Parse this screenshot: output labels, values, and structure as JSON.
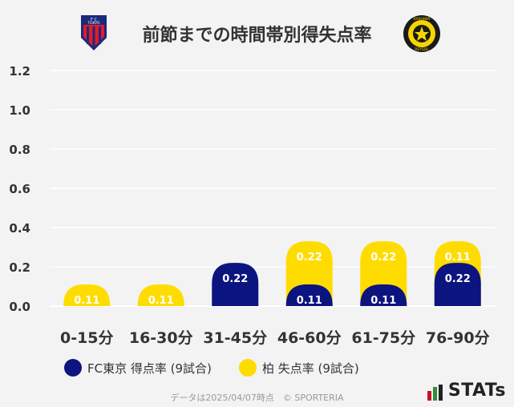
{
  "title": "前節までの時間帯別得失点率",
  "logos": {
    "left": {
      "text": "FC TOKYO",
      "color": "#e21a2c",
      "stripe": "#1b2a7a"
    },
    "right": {
      "text": "KASHIWA REYSOL",
      "color": "#f5d500"
    }
  },
  "chart_data": {
    "type": "bar",
    "categories": [
      "0-15分",
      "16-30分",
      "31-45分",
      "46-60分",
      "61-75分",
      "76-90分"
    ],
    "series": [
      {
        "name": "FC東京 得点率 (9試合)",
        "color": "#0c1480",
        "values": [
          0,
          0,
          0.22,
          0.11,
          0.11,
          0.22
        ]
      },
      {
        "name": "柏 失点率 (9試合)",
        "color": "#ffdc00",
        "values": [
          0.11,
          0.11,
          0,
          0.22,
          0.22,
          0.11
        ]
      }
    ],
    "yticks": [
      "0.0",
      "0.2",
      "0.4",
      "0.6",
      "0.8",
      "1.0",
      "1.2"
    ],
    "ylim": [
      0,
      1.2
    ],
    "stacked": true
  },
  "legend": [
    {
      "label": "FC東京 得点率 (9試合)",
      "color": "#0c1480"
    },
    {
      "label": "柏 失点率 (9試合)",
      "color": "#ffdc00"
    }
  ],
  "footer": "データは2025/04/07時点　© SPORTERIA",
  "brand": "STATs"
}
